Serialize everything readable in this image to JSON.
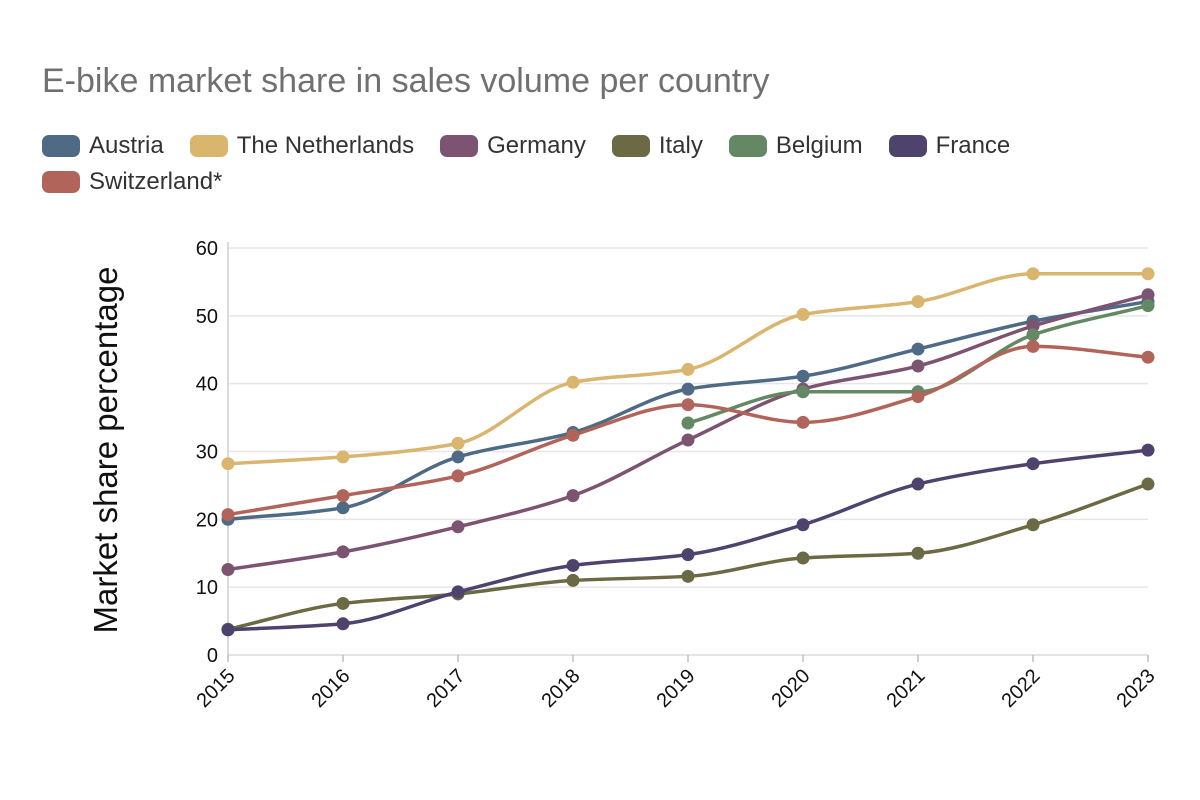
{
  "chart_data": {
    "type": "line",
    "title": "E-bike market share in sales volume per country",
    "xlabel": "",
    "ylabel": "Market share percentage",
    "x": [
      "2015",
      "2016",
      "2017",
      "2018",
      "2019",
      "2020",
      "2021",
      "2022",
      "2023"
    ],
    "yticks": [
      "0",
      "10",
      "20",
      "30",
      "40",
      "50",
      "60"
    ],
    "ylim": [
      0,
      60
    ],
    "grid": "horizontal",
    "legend_position": "top-left",
    "series": [
      {
        "name": "Austria",
        "color": "#4e6a85",
        "values": [
          20,
          21.7,
          29.2,
          32.8,
          39.2,
          41.1,
          45.1,
          49.2,
          52.1
        ]
      },
      {
        "name": "The Netherlands",
        "color": "#d9b56e",
        "values": [
          28.2,
          29.2,
          31.2,
          40.2,
          42.1,
          50.2,
          52.1,
          56.2,
          56.2
        ]
      },
      {
        "name": "Germany",
        "color": "#7c5471",
        "values": [
          12.6,
          15.2,
          18.9,
          23.5,
          31.7,
          39.2,
          42.6,
          48.5,
          53.1
        ]
      },
      {
        "name": "Italy",
        "color": "#6b6a44",
        "values": [
          3.8,
          7.6,
          9.0,
          11.0,
          11.6,
          14.3,
          15.0,
          19.2,
          25.2
        ]
      },
      {
        "name": "Belgium",
        "color": "#658864",
        "values": [
          null,
          null,
          null,
          null,
          34.2,
          38.8,
          38.8,
          47.2,
          51.5
        ]
      },
      {
        "name": "France",
        "color": "#4d436d",
        "values": [
          3.7,
          4.6,
          9.3,
          13.2,
          14.8,
          19.2,
          25.2,
          28.2,
          30.2
        ]
      },
      {
        "name": "Switzerland*",
        "color": "#b1645a",
        "values": [
          20.7,
          23.5,
          26.4,
          32.4,
          36.9,
          34.3,
          38.1,
          45.5,
          43.9
        ]
      }
    ]
  }
}
